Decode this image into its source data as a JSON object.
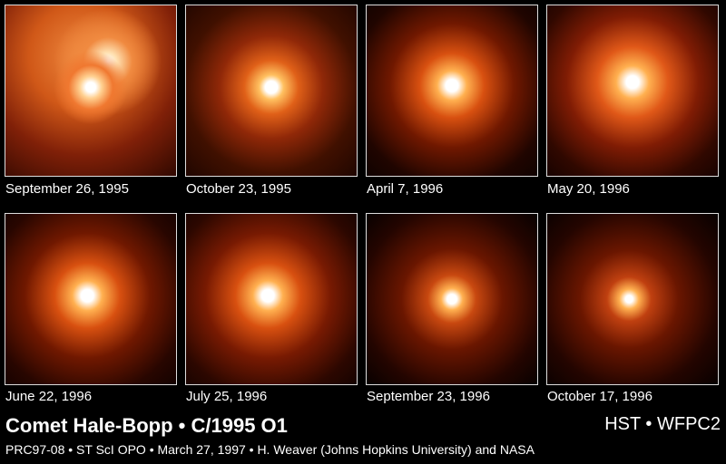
{
  "panels": [
    {
      "date": "September 26, 1995"
    },
    {
      "date": "October 23, 1995"
    },
    {
      "date": "April 7, 1996"
    },
    {
      "date": "May 20, 1996"
    },
    {
      "date": "June 22, 1996"
    },
    {
      "date": "July 25, 1996"
    },
    {
      "date": "September 23, 1996"
    },
    {
      "date": "October 17, 1996"
    }
  ],
  "title": "Comet Hale-Bopp • C/1995 O1",
  "instrument": "HST • WFPC2",
  "credit": "PRC97-08 • ST ScI OPO • March 27, 1997 • H. Weaver (Johns Hopkins University) and NASA"
}
